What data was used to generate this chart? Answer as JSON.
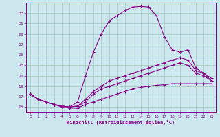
{
  "title": "",
  "xlabel": "Windchill (Refroidissement éolien,°C)",
  "ylabel": "",
  "background_color": "#cce8ee",
  "grid_color": "#a0c8b8",
  "line_color": "#880088",
  "xlim": [
    -0.5,
    23.5
  ],
  "ylim": [
    14.0,
    35.0
  ],
  "xticks": [
    0,
    1,
    2,
    3,
    4,
    5,
    6,
    7,
    8,
    9,
    10,
    11,
    12,
    13,
    14,
    15,
    16,
    17,
    18,
    19,
    20,
    21,
    22,
    23
  ],
  "yticks": [
    15,
    17,
    19,
    21,
    23,
    25,
    27,
    29,
    31,
    33
  ],
  "lines": [
    {
      "x": [
        0,
        1,
        2,
        3,
        4,
        5,
        6,
        7,
        8,
        9,
        10,
        11,
        12,
        13,
        14,
        15,
        16,
        17,
        18,
        19,
        20,
        21,
        22,
        23
      ],
      "y": [
        17.5,
        16.5,
        16.0,
        15.5,
        15.2,
        15.0,
        16.0,
        21.0,
        25.5,
        29.0,
        31.5,
        32.5,
        33.5,
        34.2,
        34.3,
        34.2,
        32.5,
        28.5,
        26.0,
        25.5,
        26.0,
        22.5,
        21.5,
        20.0
      ]
    },
    {
      "x": [
        0,
        1,
        2,
        3,
        4,
        5,
        6,
        7,
        8,
        9,
        10,
        11,
        12,
        13,
        14,
        15,
        16,
        17,
        18,
        19,
        20,
        21,
        22,
        23
      ],
      "y": [
        17.5,
        16.5,
        16.0,
        15.5,
        15.2,
        15.0,
        15.2,
        16.5,
        18.0,
        19.0,
        20.0,
        20.5,
        21.0,
        21.5,
        22.0,
        22.5,
        23.0,
        23.5,
        24.0,
        24.5,
        24.0,
        22.0,
        21.5,
        20.5
      ]
    },
    {
      "x": [
        0,
        1,
        2,
        3,
        4,
        5,
        6,
        7,
        8,
        9,
        10,
        11,
        12,
        13,
        14,
        15,
        16,
        17,
        18,
        19,
        20,
        21,
        22,
        23
      ],
      "y": [
        17.5,
        16.5,
        16.0,
        15.5,
        15.2,
        15.0,
        15.2,
        16.0,
        17.5,
        18.5,
        19.0,
        19.5,
        20.0,
        20.5,
        21.0,
        21.5,
        22.0,
        22.5,
        23.0,
        23.5,
        23.0,
        21.5,
        21.0,
        20.0
      ]
    },
    {
      "x": [
        0,
        1,
        2,
        3,
        4,
        5,
        6,
        7,
        8,
        9,
        10,
        11,
        12,
        13,
        14,
        15,
        16,
        17,
        18,
        19,
        20,
        21,
        22,
        23
      ],
      "y": [
        17.5,
        16.5,
        16.0,
        15.5,
        15.0,
        14.8,
        14.8,
        15.5,
        16.0,
        16.5,
        17.0,
        17.5,
        18.0,
        18.5,
        18.8,
        19.0,
        19.2,
        19.3,
        19.5,
        19.5,
        19.5,
        19.5,
        19.5,
        19.5
      ]
    }
  ]
}
